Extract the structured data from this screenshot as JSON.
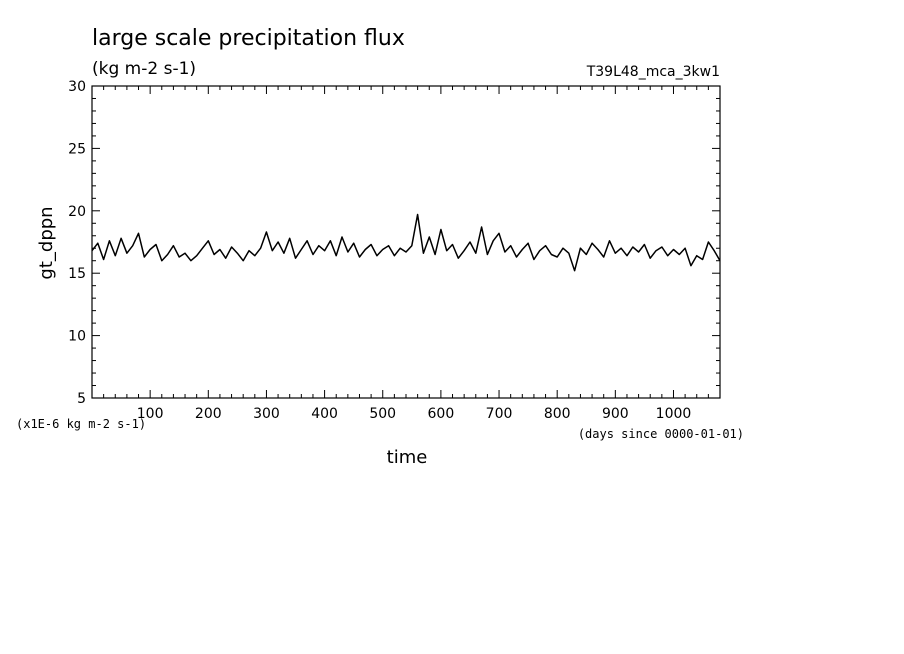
{
  "chart_data": {
    "type": "line",
    "title": "large scale precipitation flux",
    "subtitle": "(kg m-2 s-1)",
    "run_label": "T39L48_mca_3kw1",
    "xlabel": "time",
    "xunits": "(days since 0000-01-01)",
    "ylabel": "gt_dppn",
    "yunits": "(x1E-6 kg m-2 s-1)",
    "xlim": [
      0,
      1080
    ],
    "ylim": [
      5,
      30
    ],
    "xticks": [
      100,
      200,
      300,
      400,
      500,
      600,
      700,
      800,
      900,
      1000
    ],
    "yticks": [
      5,
      10,
      15,
      20,
      25,
      30
    ],
    "grid": false,
    "series": [
      {
        "x": [
          0,
          10,
          20,
          30,
          40,
          50,
          60,
          70,
          80,
          90,
          100,
          110,
          120,
          130,
          140,
          150,
          160,
          170,
          180,
          190,
          200,
          210,
          220,
          230,
          240,
          250,
          260,
          270,
          280,
          290,
          300,
          310,
          320,
          330,
          340,
          350,
          360,
          370,
          380,
          390,
          400,
          410,
          420,
          430,
          440,
          450,
          460,
          470,
          480,
          490,
          500,
          510,
          520,
          530,
          540,
          550,
          560,
          570,
          580,
          590,
          600,
          610,
          620,
          630,
          640,
          650,
          660,
          670,
          680,
          690,
          700,
          710,
          720,
          730,
          740,
          750,
          760,
          770,
          780,
          790,
          800,
          810,
          820,
          830,
          840,
          850,
          860,
          870,
          880,
          890,
          900,
          910,
          920,
          930,
          940,
          950,
          960,
          970,
          980,
          990,
          1000,
          1010,
          1020,
          1030,
          1040,
          1050,
          1060,
          1070,
          1080
        ],
        "values": [
          16.8,
          17.4,
          16.1,
          17.6,
          16.4,
          17.8,
          16.6,
          17.2,
          18.2,
          16.3,
          16.9,
          17.3,
          16.0,
          16.5,
          17.2,
          16.3,
          16.6,
          16.0,
          16.4,
          17.0,
          17.6,
          16.5,
          16.9,
          16.2,
          17.1,
          16.6,
          16.0,
          16.8,
          16.4,
          17.0,
          18.3,
          16.8,
          17.5,
          16.6,
          17.8,
          16.2,
          16.9,
          17.6,
          16.5,
          17.2,
          16.8,
          17.6,
          16.4,
          17.9,
          16.7,
          17.4,
          16.3,
          16.9,
          17.3,
          16.4,
          16.9,
          17.2,
          16.4,
          17.0,
          16.7,
          17.2,
          19.7,
          16.6,
          17.9,
          16.5,
          18.5,
          16.8,
          17.3,
          16.2,
          16.8,
          17.5,
          16.6,
          18.7,
          16.5,
          17.6,
          18.2,
          16.7,
          17.2,
          16.3,
          16.9,
          17.4,
          16.1,
          16.8,
          17.2,
          16.5,
          16.3,
          17.0,
          16.6,
          15.2,
          17.0,
          16.5,
          17.4,
          16.9,
          16.3,
          17.6,
          16.6,
          17.0,
          16.4,
          17.1,
          16.7,
          17.3,
          16.2,
          16.8,
          17.1,
          16.4,
          16.9,
          16.5,
          17.0,
          15.6,
          16.4,
          16.1,
          17.5,
          16.8,
          16.0
        ]
      }
    ]
  }
}
